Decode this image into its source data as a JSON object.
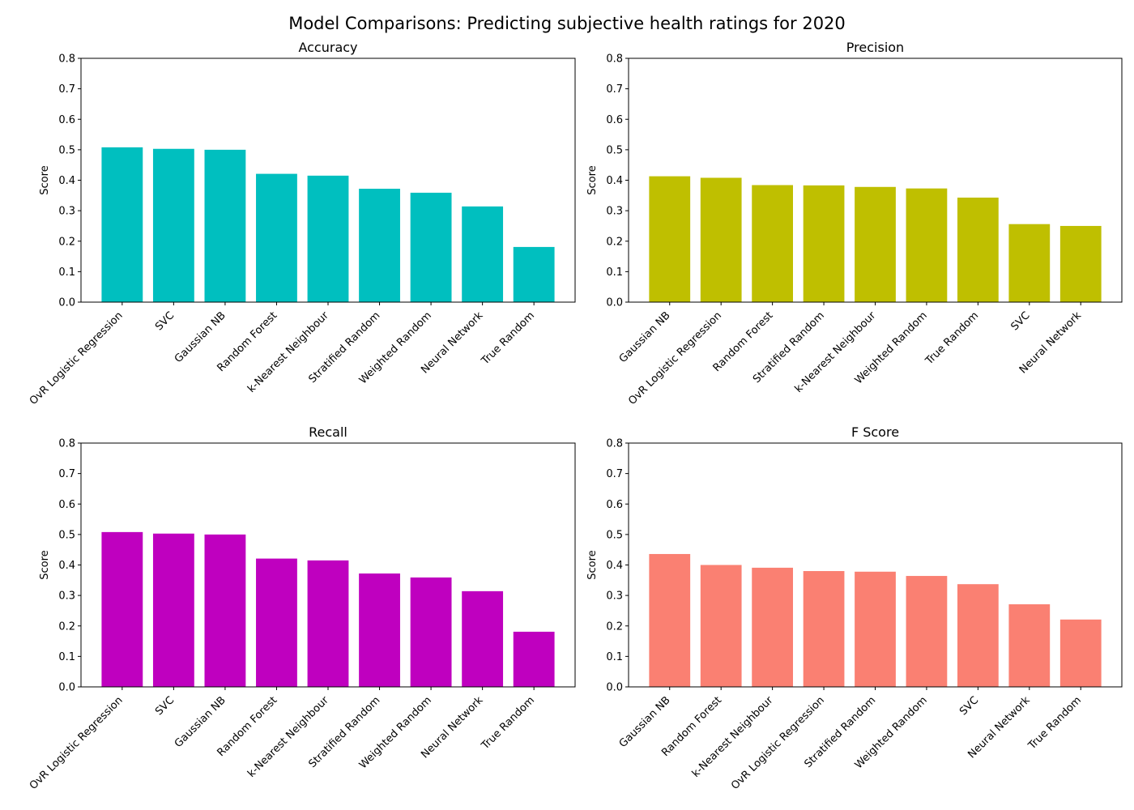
{
  "figure_title": "Model Comparisons: Predicting subjective health ratings for 2020",
  "chart_data": [
    {
      "type": "bar",
      "title": "Accuracy",
      "xlabel": "",
      "ylabel": "Score",
      "ylim": [
        0,
        0.8
      ],
      "yticks": [
        0.0,
        0.1,
        0.2,
        0.3,
        0.4,
        0.5,
        0.6,
        0.7,
        0.8
      ],
      "ytick_labels": [
        "0.0",
        "0.1",
        "0.2",
        "0.3",
        "0.4",
        "0.5",
        "0.6",
        "0.7",
        "0.8"
      ],
      "color": "#00bfbf",
      "categories": [
        "OvR Logistic Regression",
        "SVC",
        "Gaussian NB",
        "Random Forest",
        "k-Nearest Neighbour",
        "Stratified Random",
        "Weighted Random",
        "Neural Network",
        "True Random"
      ],
      "values": [
        0.508,
        0.503,
        0.5,
        0.421,
        0.415,
        0.372,
        0.359,
        0.314,
        0.181
      ],
      "grid": false
    },
    {
      "type": "bar",
      "title": "Precision",
      "xlabel": "",
      "ylabel": "Score",
      "ylim": [
        0,
        0.8
      ],
      "yticks": [
        0.0,
        0.1,
        0.2,
        0.3,
        0.4,
        0.5,
        0.6,
        0.7,
        0.8
      ],
      "ytick_labels": [
        "0.0",
        "0.1",
        "0.2",
        "0.3",
        "0.4",
        "0.5",
        "0.6",
        "0.7",
        "0.8"
      ],
      "color": "#bfbf00",
      "categories": [
        "Gaussian NB",
        "OvR Logistic Regression",
        "Random Forest",
        "Stratified Random",
        "k-Nearest Neighbour",
        "Weighted Random",
        "True Random",
        "SVC",
        "Neural Network"
      ],
      "values": [
        0.413,
        0.408,
        0.384,
        0.383,
        0.378,
        0.373,
        0.343,
        0.256,
        0.25
      ],
      "grid": false
    },
    {
      "type": "bar",
      "title": "Recall",
      "xlabel": "",
      "ylabel": "Score",
      "ylim": [
        0,
        0.8
      ],
      "yticks": [
        0.0,
        0.1,
        0.2,
        0.3,
        0.4,
        0.5,
        0.6,
        0.7,
        0.8
      ],
      "ytick_labels": [
        "0.0",
        "0.1",
        "0.2",
        "0.3",
        "0.4",
        "0.5",
        "0.6",
        "0.7",
        "0.8"
      ],
      "color": "#bf00bf",
      "categories": [
        "OvR Logistic Regression",
        "SVC",
        "Gaussian NB",
        "Random Forest",
        "k-Nearest Neighbour",
        "Stratified Random",
        "Weighted Random",
        "Neural Network",
        "True Random"
      ],
      "values": [
        0.508,
        0.503,
        0.5,
        0.421,
        0.415,
        0.372,
        0.359,
        0.314,
        0.181
      ],
      "grid": false
    },
    {
      "type": "bar",
      "title": "F Score",
      "xlabel": "",
      "ylabel": "Score",
      "ylim": [
        0,
        0.8
      ],
      "yticks": [
        0.0,
        0.1,
        0.2,
        0.3,
        0.4,
        0.5,
        0.6,
        0.7,
        0.8
      ],
      "ytick_labels": [
        "0.0",
        "0.1",
        "0.2",
        "0.3",
        "0.4",
        "0.5",
        "0.6",
        "0.7",
        "0.8"
      ],
      "color": "#fa8072",
      "categories": [
        "Gaussian NB",
        "Random Forest",
        "k-Nearest Neighbour",
        "OvR Logistic Regression",
        "Stratified Random",
        "Weighted Random",
        "SVC",
        "Neural Network",
        "True Random"
      ],
      "values": [
        0.436,
        0.4,
        0.391,
        0.38,
        0.378,
        0.364,
        0.337,
        0.271,
        0.221
      ],
      "grid": false
    }
  ]
}
